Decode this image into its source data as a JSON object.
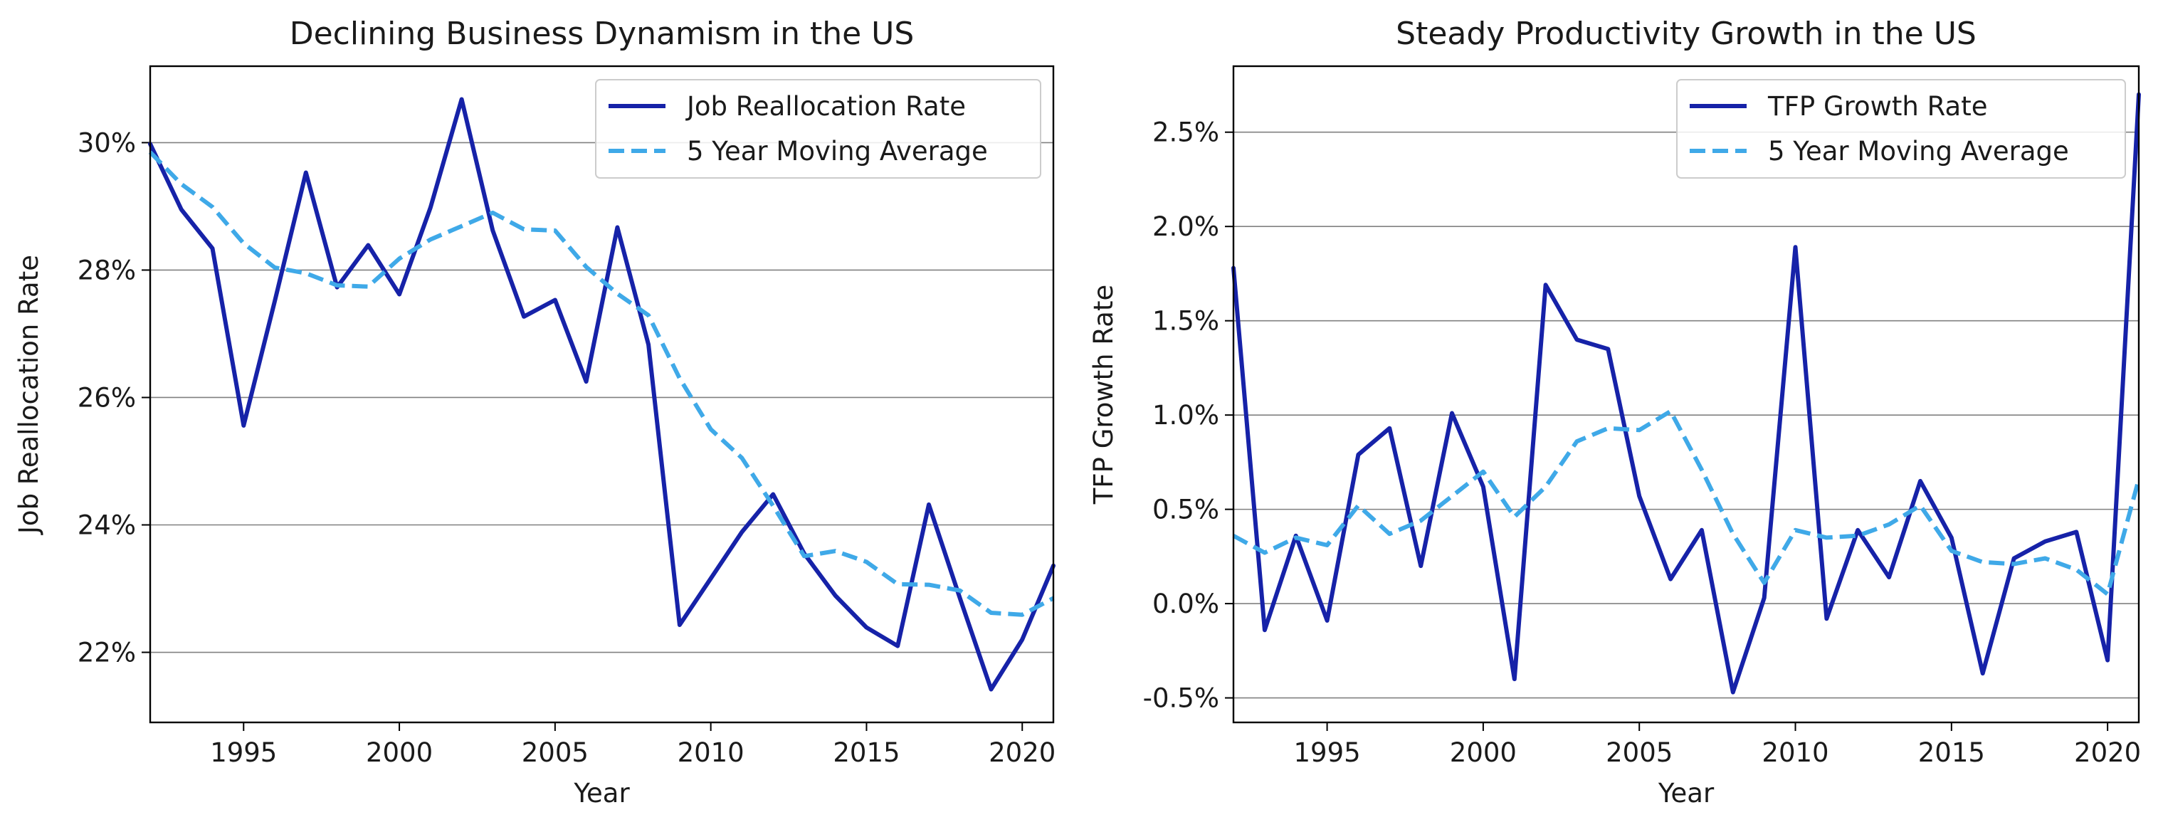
{
  "chart_data": [
    {
      "type": "line",
      "title": "Declining Business Dynamism in the US",
      "xlabel": "Year",
      "ylabel": "Job Reallocation Rate",
      "xlim": [
        1992,
        2021
      ],
      "ylim": [
        0.209,
        0.312
      ],
      "x_ticks": [
        1995,
        2000,
        2005,
        2010,
        2015,
        2020
      ],
      "x_tick_labels": [
        "1995",
        "2000",
        "2005",
        "2010",
        "2015",
        "2020"
      ],
      "y_ticks": [
        0.22,
        0.24,
        0.26,
        0.28,
        0.3
      ],
      "y_tick_labels": [
        "22%",
        "24%",
        "26%",
        "28%",
        "30%"
      ],
      "grid": "horizontal",
      "legend_position": "top-right",
      "x": [
        1992,
        1993,
        1994,
        1995,
        1996,
        1997,
        1998,
        1999,
        2000,
        2001,
        2002,
        2003,
        2004,
        2005,
        2006,
        2007,
        2008,
        2009,
        2010,
        2011,
        2012,
        2013,
        2014,
        2015,
        2016,
        2017,
        2018,
        2019,
        2020,
        2021
      ],
      "series": [
        {
          "name": "Job Reallocation Rate",
          "color": "#1622a8",
          "style": "solid",
          "values": [
            0.2998,
            0.2895,
            0.2834,
            0.2556,
            0.2751,
            0.2953,
            0.2773,
            0.2839,
            0.2762,
            0.2898,
            0.3068,
            0.2862,
            0.2727,
            0.2753,
            0.2625,
            0.2867,
            0.2683,
            0.2243,
            0.2316,
            0.2389,
            0.2448,
            0.2355,
            0.2289,
            0.2239,
            0.221,
            0.2432,
            0.2285,
            0.2142,
            0.222,
            0.2336
          ]
        },
        {
          "name": "5 Year Moving Average",
          "color": "#3fa9e8",
          "style": "dashed",
          "values": [
            0.2985,
            0.2935,
            0.2899,
            0.2842,
            0.2804,
            0.2795,
            0.2776,
            0.2774,
            0.2818,
            0.2848,
            0.2869,
            0.289,
            0.2864,
            0.2862,
            0.2805,
            0.2763,
            0.2729,
            0.263,
            0.255,
            0.2505,
            0.243,
            0.2351,
            0.2359,
            0.2342,
            0.2307,
            0.2306,
            0.2297,
            0.2262,
            0.2259,
            0.2285
          ]
        }
      ]
    },
    {
      "type": "line",
      "title": "Steady Productivity Growth in the US",
      "xlabel": "Year",
      "ylabel": "TFP Growth Rate",
      "xlim": [
        1992,
        2021
      ],
      "ylim": [
        -0.0063,
        0.0285
      ],
      "x_ticks": [
        1995,
        2000,
        2005,
        2010,
        2015,
        2020
      ],
      "x_tick_labels": [
        "1995",
        "2000",
        "2005",
        "2010",
        "2015",
        "2020"
      ],
      "y_ticks": [
        -0.005,
        0.0,
        0.005,
        0.01,
        0.015,
        0.02,
        0.025
      ],
      "y_tick_labels": [
        "-0.5%",
        "0.0%",
        "0.5%",
        "1.0%",
        "1.5%",
        "2.0%",
        "2.5%"
      ],
      "grid": "horizontal",
      "legend_position": "top-right",
      "x": [
        1992,
        1993,
        1994,
        1995,
        1996,
        1997,
        1998,
        1999,
        2000,
        2001,
        2002,
        2003,
        2004,
        2005,
        2006,
        2007,
        2008,
        2009,
        2010,
        2011,
        2012,
        2013,
        2014,
        2015,
        2016,
        2017,
        2018,
        2019,
        2020,
        2021
      ],
      "series": [
        {
          "name": "TFP Growth Rate",
          "color": "#1622a8",
          "style": "solid",
          "values": [
            0.0178,
            -0.0014,
            0.0036,
            -0.0009,
            0.0079,
            0.0093,
            0.002,
            0.0101,
            0.0062,
            -0.004,
            0.0169,
            0.014,
            0.0135,
            0.0057,
            0.0013,
            0.0039,
            -0.0047,
            0.0003,
            0.0189,
            -0.0008,
            0.0039,
            0.0014,
            0.0065,
            0.0035,
            -0.0037,
            0.0024,
            0.0033,
            0.0038,
            -0.003,
            0.027
          ]
        },
        {
          "name": "5 Year Moving Average",
          "color": "#3fa9e8",
          "style": "dashed",
          "values": [
            0.0036,
            0.0027,
            0.0035,
            0.0031,
            0.0052,
            0.0037,
            0.0044,
            0.0057,
            0.007,
            0.0046,
            0.0062,
            0.0086,
            0.0093,
            0.0092,
            0.0102,
            0.0071,
            0.0037,
            0.0011,
            0.0039,
            0.0035,
            0.0036,
            0.0042,
            0.0052,
            0.0028,
            0.0022,
            0.0021,
            0.0024,
            0.0018,
            0.0005,
            0.0066
          ]
        }
      ]
    }
  ]
}
